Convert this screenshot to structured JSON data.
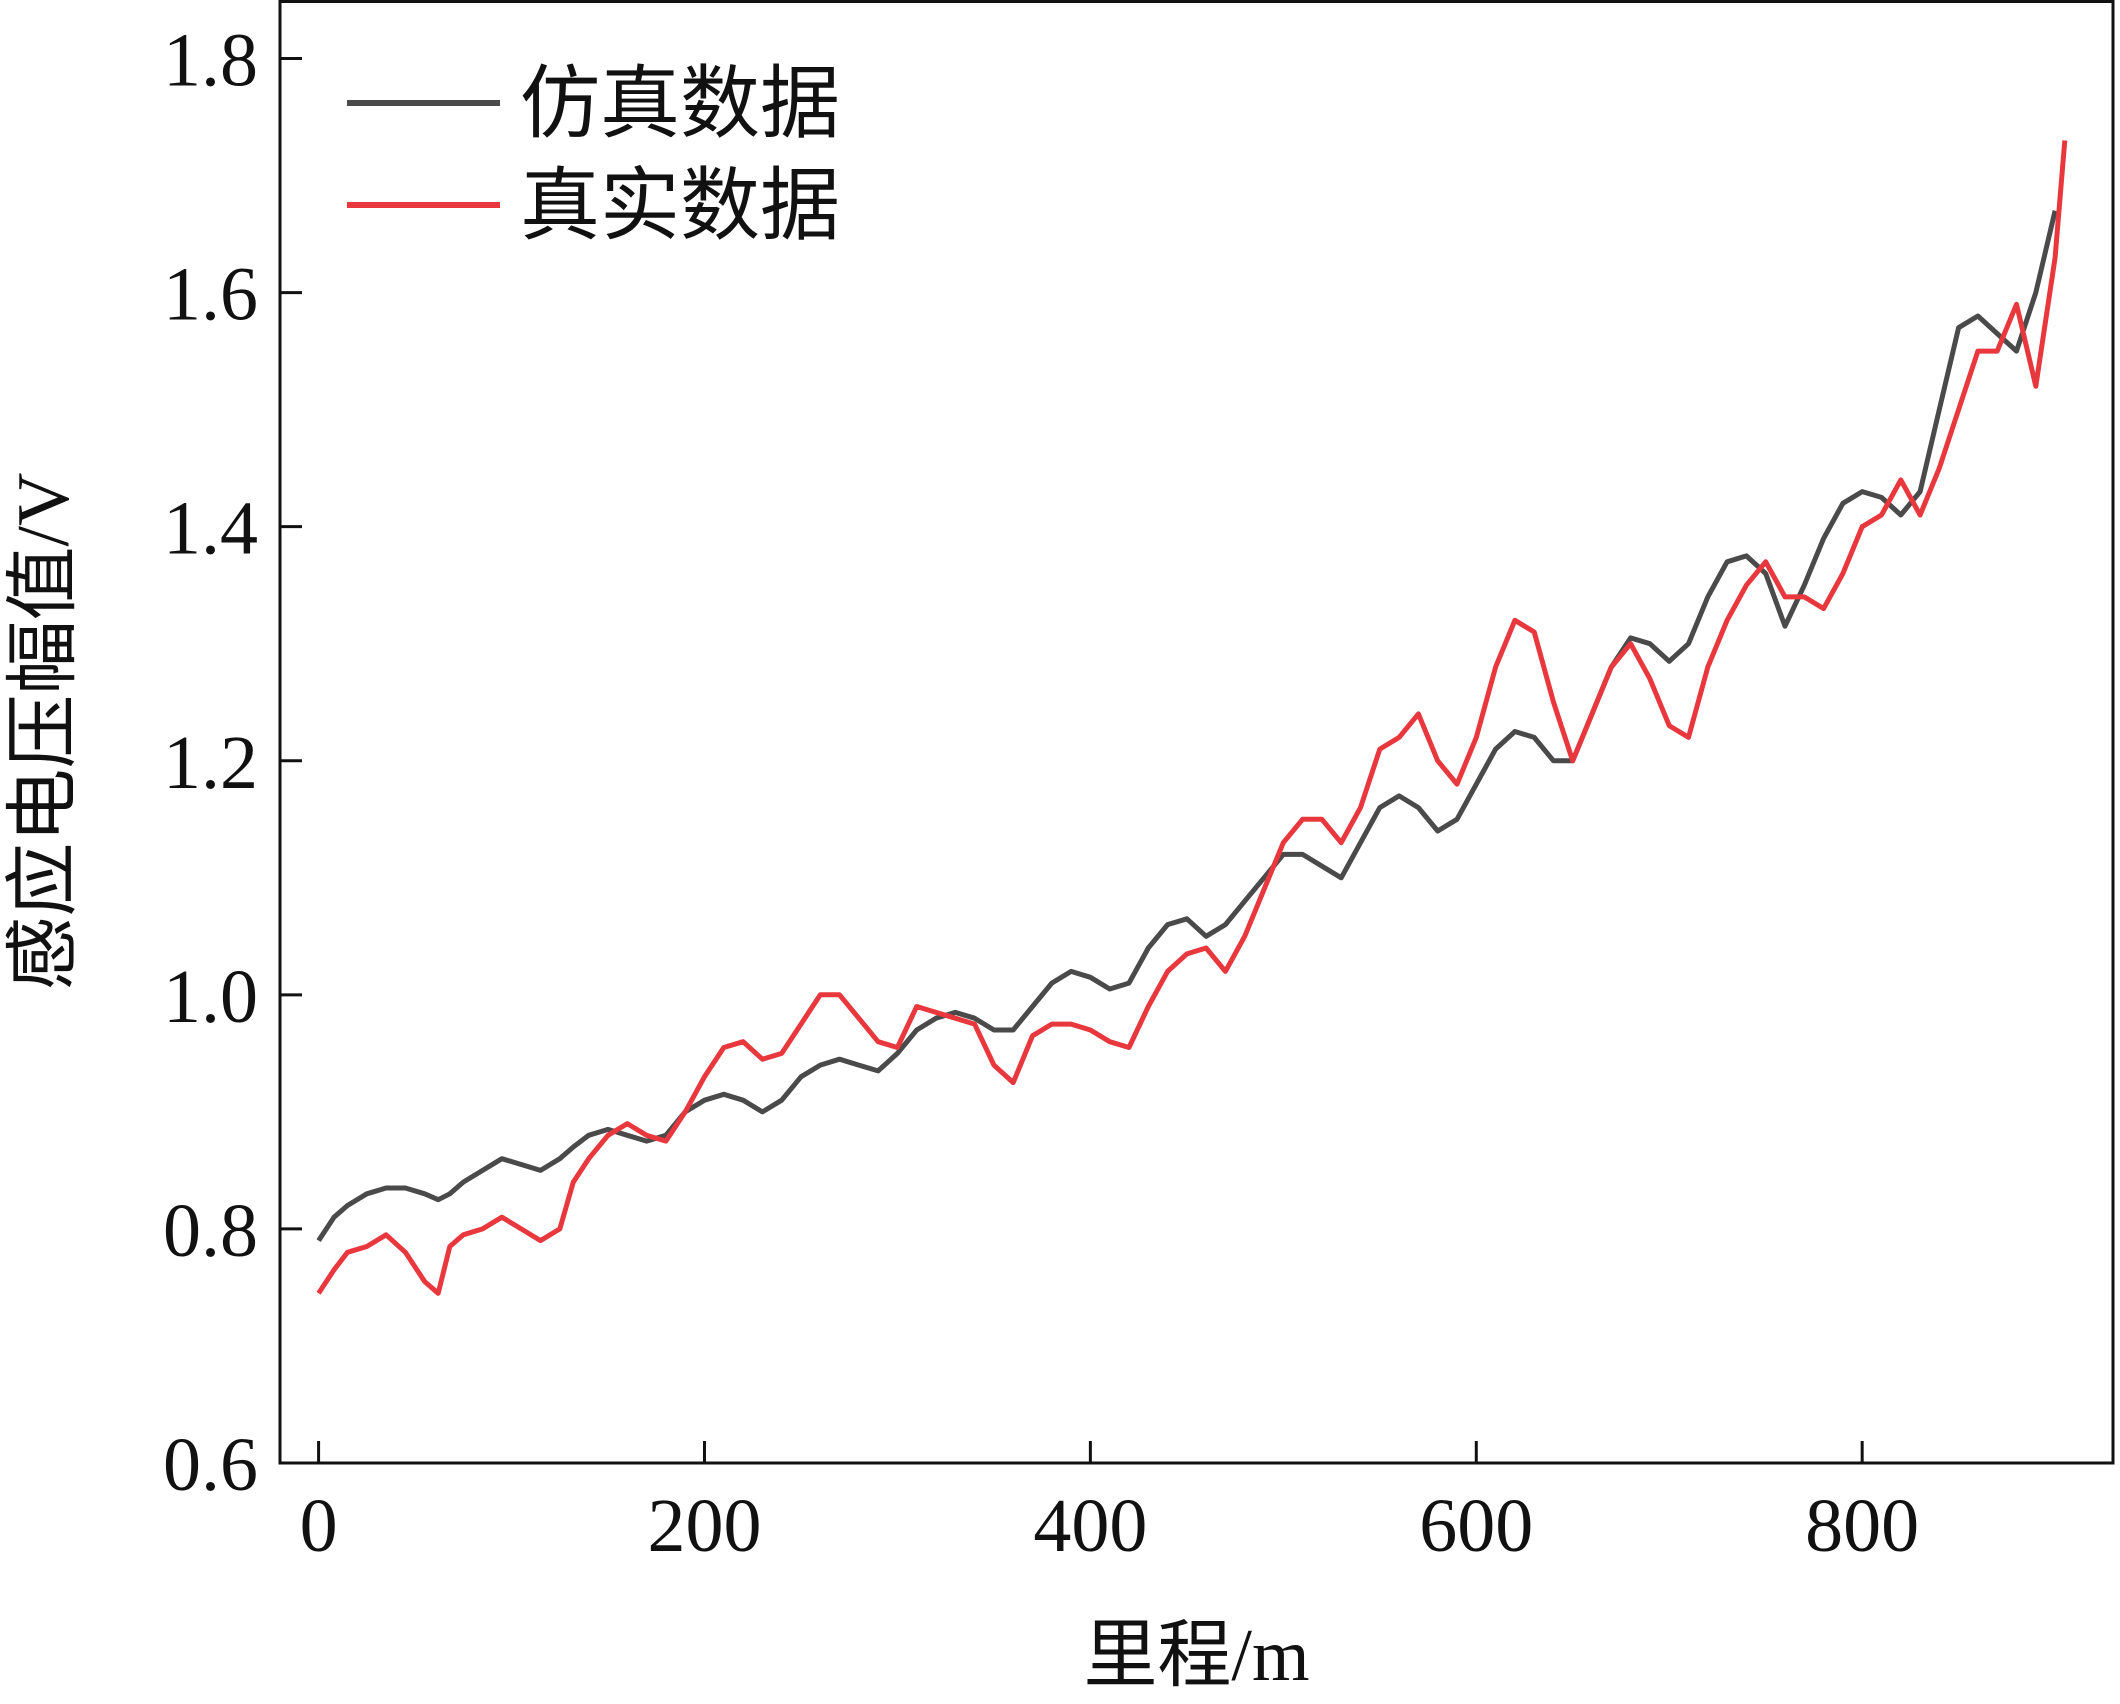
{
  "colors": {
    "axis": "#111111",
    "series_sim": "#4a4a4a",
    "series_real": "#e8383d"
  },
  "chart_data": {
    "type": "line",
    "xlabel": "里程/m",
    "ylabel": "感应电压幅值/V",
    "xlim": [
      -20,
      930
    ],
    "ylim": [
      0.6,
      1.85
    ],
    "xticks": [
      0,
      200,
      400,
      600,
      800
    ],
    "yticks": [
      0.6,
      0.8,
      1.0,
      1.2,
      1.4,
      1.6,
      1.8
    ],
    "xtick_labels": [
      "0",
      "200",
      "400",
      "600",
      "800"
    ],
    "ytick_labels": [
      "0.6",
      "0.8",
      "1.0",
      "1.2",
      "1.4",
      "1.6",
      "1.8"
    ],
    "grid": false,
    "legend_position": "top-left",
    "series": [
      {
        "name": "仿真数据",
        "color_key": "series_sim",
        "x": [
          0,
          8,
          15,
          25,
          35,
          45,
          55,
          62,
          68,
          75,
          85,
          95,
          105,
          115,
          125,
          132,
          140,
          150,
          160,
          170,
          180,
          190,
          200,
          210,
          220,
          230,
          240,
          250,
          260,
          270,
          280,
          290,
          300,
          310,
          320,
          330,
          340,
          350,
          360,
          370,
          380,
          390,
          400,
          410,
          420,
          430,
          440,
          450,
          460,
          470,
          480,
          490,
          500,
          510,
          520,
          530,
          540,
          550,
          560,
          570,
          580,
          590,
          600,
          610,
          620,
          630,
          640,
          650,
          660,
          670,
          680,
          690,
          700,
          710,
          720,
          730,
          740,
          750,
          760,
          770,
          780,
          790,
          800,
          810,
          820,
          830,
          840,
          850,
          860,
          870,
          880,
          890,
          900
        ],
        "y": [
          0.79,
          0.81,
          0.82,
          0.83,
          0.835,
          0.835,
          0.83,
          0.825,
          0.83,
          0.84,
          0.85,
          0.86,
          0.855,
          0.85,
          0.86,
          0.87,
          0.88,
          0.885,
          0.88,
          0.875,
          0.88,
          0.9,
          0.91,
          0.915,
          0.91,
          0.9,
          0.91,
          0.93,
          0.94,
          0.945,
          0.94,
          0.935,
          0.95,
          0.97,
          0.98,
          0.985,
          0.98,
          0.97,
          0.97,
          0.99,
          1.01,
          1.02,
          1.015,
          1.005,
          1.01,
          1.04,
          1.06,
          1.065,
          1.05,
          1.06,
          1.08,
          1.1,
          1.12,
          1.12,
          1.11,
          1.1,
          1.13,
          1.16,
          1.17,
          1.16,
          1.14,
          1.15,
          1.18,
          1.21,
          1.225,
          1.22,
          1.2,
          1.2,
          1.24,
          1.28,
          1.305,
          1.3,
          1.285,
          1.3,
          1.34,
          1.37,
          1.375,
          1.36,
          1.315,
          1.35,
          1.39,
          1.42,
          1.43,
          1.425,
          1.41,
          1.43,
          1.5,
          1.57,
          1.58,
          1.565,
          1.55,
          1.6,
          1.67
        ]
      },
      {
        "name": "真实数据",
        "color_key": "series_real",
        "x": [
          0,
          8,
          15,
          25,
          35,
          45,
          55,
          62,
          68,
          75,
          85,
          95,
          105,
          115,
          125,
          132,
          140,
          150,
          160,
          170,
          180,
          190,
          200,
          210,
          220,
          230,
          240,
          250,
          260,
          270,
          280,
          290,
          300,
          310,
          320,
          330,
          340,
          350,
          360,
          370,
          380,
          390,
          400,
          410,
          420,
          430,
          440,
          450,
          460,
          470,
          480,
          490,
          500,
          510,
          520,
          530,
          540,
          550,
          560,
          570,
          580,
          590,
          600,
          610,
          620,
          630,
          640,
          650,
          660,
          670,
          680,
          690,
          700,
          710,
          720,
          730,
          740,
          750,
          760,
          770,
          780,
          790,
          800,
          810,
          820,
          830,
          840,
          850,
          860,
          870,
          880,
          890,
          900,
          905
        ],
        "y": [
          0.745,
          0.765,
          0.78,
          0.785,
          0.795,
          0.78,
          0.755,
          0.745,
          0.785,
          0.795,
          0.8,
          0.81,
          0.8,
          0.79,
          0.8,
          0.84,
          0.86,
          0.88,
          0.89,
          0.88,
          0.875,
          0.9,
          0.93,
          0.955,
          0.96,
          0.945,
          0.95,
          0.975,
          1.0,
          1.0,
          0.98,
          0.96,
          0.955,
          0.99,
          0.985,
          0.98,
          0.975,
          0.94,
          0.925,
          0.965,
          0.975,
          0.975,
          0.97,
          0.96,
          0.955,
          0.99,
          1.02,
          1.035,
          1.04,
          1.02,
          1.05,
          1.09,
          1.13,
          1.15,
          1.15,
          1.13,
          1.16,
          1.21,
          1.22,
          1.24,
          1.2,
          1.18,
          1.22,
          1.28,
          1.32,
          1.31,
          1.25,
          1.2,
          1.24,
          1.28,
          1.3,
          1.27,
          1.23,
          1.22,
          1.28,
          1.32,
          1.35,
          1.37,
          1.34,
          1.34,
          1.33,
          1.36,
          1.4,
          1.41,
          1.44,
          1.41,
          1.45,
          1.5,
          1.55,
          1.55,
          1.59,
          1.52,
          1.63,
          1.73
        ]
      }
    ]
  }
}
